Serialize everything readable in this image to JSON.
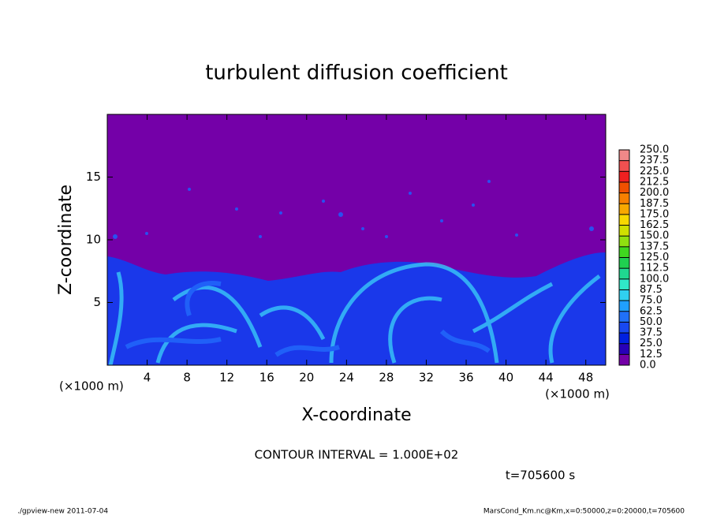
{
  "chart_data": {
    "type": "contour",
    "title": "turbulent diffusion coefficient",
    "xlabel": "X-coordinate",
    "ylabel": "Z-coordinate",
    "x_unit": "(×1000 m)",
    "y_unit": "(×1000 m)",
    "xlim": [
      0,
      50
    ],
    "ylim": [
      0,
      20
    ],
    "xticks": [
      4,
      8,
      12,
      16,
      20,
      24,
      28,
      32,
      36,
      40,
      44,
      48
    ],
    "yticks": [
      5,
      10,
      15
    ],
    "colorbar": {
      "ticks": [
        {
          "value": 0,
          "label": "0.0"
        },
        {
          "value": 12.5,
          "label": "12.5"
        },
        {
          "value": 25,
          "label": "25.0"
        },
        {
          "value": 37.5,
          "label": "37.5"
        },
        {
          "value": 50,
          "label": "50.0"
        },
        {
          "value": 62.5,
          "label": "62.5"
        },
        {
          "value": 75,
          "label": "75.0"
        },
        {
          "value": 87.5,
          "label": "87.5"
        },
        {
          "value": 100,
          "label": "100.0"
        },
        {
          "value": 112.5,
          "label": "112.5"
        },
        {
          "value": 125,
          "label": "125.0"
        },
        {
          "value": 137.5,
          "label": "137.5"
        },
        {
          "value": 150,
          "label": "150.0"
        },
        {
          "value": 162.5,
          "label": "162.5"
        },
        {
          "value": 175,
          "label": "175.0"
        },
        {
          "value": 187.5,
          "label": "187.5"
        },
        {
          "value": 200,
          "label": "200.0"
        },
        {
          "value": 212.5,
          "label": "212.5"
        },
        {
          "value": 225,
          "label": "225.0"
        },
        {
          "value": 237.5,
          "label": "237.5"
        },
        {
          "value": 250,
          "label": "250.0"
        }
      ],
      "colors": [
        "#7400a8",
        "#2800b8",
        "#0020e0",
        "#1848f0",
        "#2070f8",
        "#20a0ff",
        "#30d0f0",
        "#30e8c8",
        "#20d890",
        "#20d050",
        "#40d820",
        "#90e010",
        "#d0e000",
        "#f8d800",
        "#f8a800",
        "#f88000",
        "#f05000",
        "#f02020",
        "#f05050",
        "#f08888"
      ]
    },
    "contour_interval": "CONTOUR INTERVAL = 1.000E+02",
    "time_label": "t=705600 s",
    "footer_left": "./gpview-new  2011-07-04",
    "footer_right": "MarsCond_Km.nc@Km,x=0:50000,z=0:20000,t=705600"
  }
}
